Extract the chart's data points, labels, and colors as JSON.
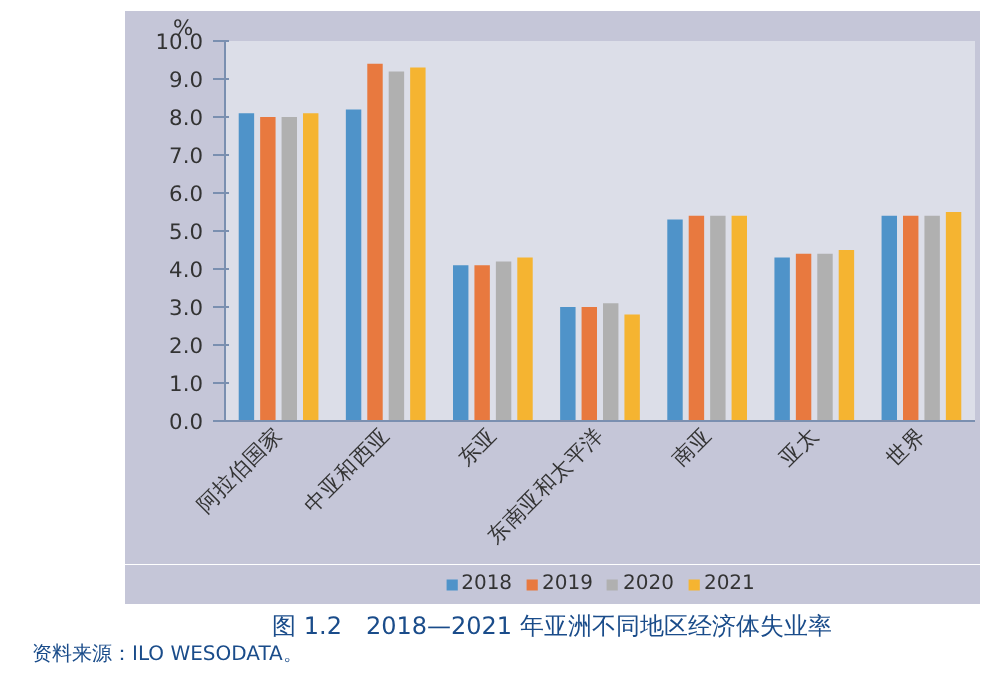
{
  "chart_data": {
    "type": "bar",
    "title": "图 1.2　2018—2021 年亚洲不同地区经济体失业率",
    "ylabel": "%",
    "categories": [
      "阿拉伯国家",
      "中亚和西亚",
      "东亚",
      "东南亚和太平洋",
      "南亚",
      "亚太",
      "世界"
    ],
    "series": [
      {
        "name": "2018",
        "color": "#4f93c9",
        "values": [
          8.1,
          8.2,
          4.1,
          3.0,
          5.3,
          4.3,
          5.4
        ]
      },
      {
        "name": "2019",
        "color": "#e8793f",
        "values": [
          8.0,
          9.4,
          4.1,
          3.0,
          5.4,
          4.4,
          5.4
        ]
      },
      {
        "name": "2020",
        "color": "#b0b0b0",
        "values": [
          8.0,
          9.2,
          4.2,
          3.1,
          5.4,
          4.4,
          5.4
        ]
      },
      {
        "name": "2021",
        "color": "#f5b431",
        "values": [
          8.1,
          9.3,
          4.3,
          2.8,
          5.4,
          4.5,
          5.5
        ]
      }
    ],
    "ylim": [
      0,
      10
    ],
    "yticks": [
      {
        "value": 0,
        "label": "0.0"
      },
      {
        "value": 1,
        "label": "1.0"
      },
      {
        "value": 2,
        "label": "2.0"
      },
      {
        "value": 3,
        "label": "3.0"
      },
      {
        "value": 4,
        "label": "4.0"
      },
      {
        "value": 5,
        "label": "5.0"
      },
      {
        "value": 6,
        "label": "6.0"
      },
      {
        "value": 7,
        "label": "7.0"
      },
      {
        "value": 8,
        "label": "8.0"
      },
      {
        "value": 9,
        "label": "9.0"
      },
      {
        "value": 10,
        "label": "10.0"
      }
    ],
    "grid": false,
    "legend": "bottom",
    "annotations": [
      "资料来源：ILO WESODATA。"
    ]
  }
}
